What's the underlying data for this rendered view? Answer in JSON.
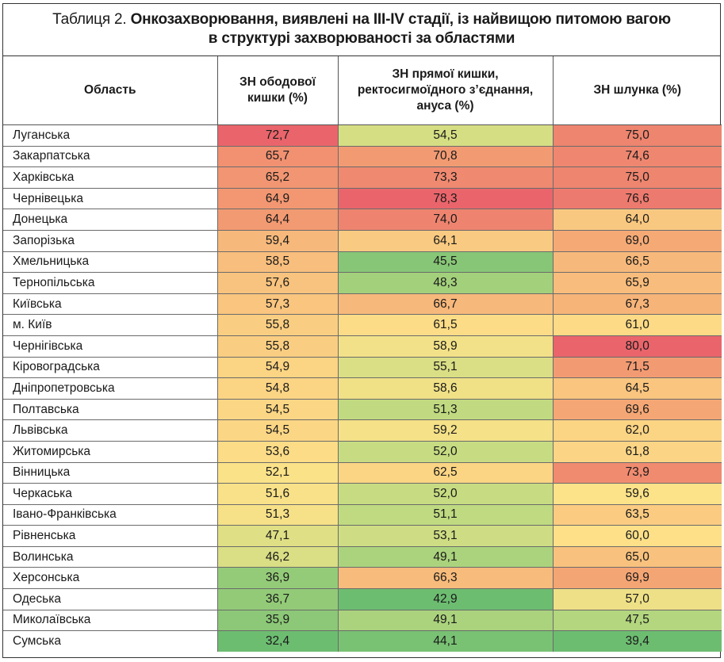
{
  "title": {
    "prefix": "Таблиця 2. ",
    "line1_bold": "Онкозахворювання, виявлені на ІІІ-IV стадії, із найвищою питомою вагою",
    "line2_bold": "в структурі захворюваності за областями"
  },
  "headers": {
    "region": "Область",
    "colon": "ЗН ободової кишки (%)",
    "rectum": "ЗН прямої кишки, ректосигмоїдного з’єднання, ануса (%)",
    "stomach": "ЗН шлунка (%)"
  },
  "rows": [
    {
      "region": "Луганська",
      "colon": "72,7",
      "rectum": "54,5",
      "stomach": "75,0"
    },
    {
      "region": "Закарпатська",
      "colon": "65,7",
      "rectum": "70,8",
      "stomach": "74,6"
    },
    {
      "region": "Харківська",
      "colon": "65,2",
      "rectum": "73,3",
      "stomach": "75,0"
    },
    {
      "region": "Чернівецька",
      "colon": "64,9",
      "rectum": "78,3",
      "stomach": "76,6"
    },
    {
      "region": "Донецька",
      "colon": "64,4",
      "rectum": "74,0",
      "stomach": "64,0"
    },
    {
      "region": "Запорізька",
      "colon": "59,4",
      "rectum": "64,1",
      "stomach": "69,0"
    },
    {
      "region": "Хмельницька",
      "colon": "58,5",
      "rectum": "45,5",
      "stomach": "66,5"
    },
    {
      "region": "Тернопільська",
      "colon": "57,6",
      "rectum": "48,3",
      "stomach": "65,9"
    },
    {
      "region": "Київська",
      "colon": "57,3",
      "rectum": "66,7",
      "stomach": "67,3"
    },
    {
      "region": "м. Київ",
      "colon": "55,8",
      "rectum": "61,5",
      "stomach": "61,0"
    },
    {
      "region": "Чернігівська",
      "colon": "55,8",
      "rectum": "58,9",
      "stomach": "80,0"
    },
    {
      "region": "Кіровоградська",
      "colon": "54,9",
      "rectum": "55,1",
      "stomach": "71,5"
    },
    {
      "region": "Дніпропетровська",
      "colon": "54,8",
      "rectum": "58,6",
      "stomach": "64,5"
    },
    {
      "region": "Полтавська",
      "colon": "54,5",
      "rectum": "51,3",
      "stomach": "69,6"
    },
    {
      "region": "Львівська",
      "colon": "54,5",
      "rectum": "59,2",
      "stomach": "62,0"
    },
    {
      "region": "Житомирська",
      "colon": "53,6",
      "rectum": "52,0",
      "stomach": "61,8"
    },
    {
      "region": "Вінницька",
      "colon": "52,1",
      "rectum": "62,5",
      "stomach": "73,9"
    },
    {
      "region": "Черкаська",
      "colon": "51,6",
      "rectum": "52,0",
      "stomach": "59,6"
    },
    {
      "region": "Івано-Франківська",
      "colon": "51,3",
      "rectum": "51,1",
      "stomach": "63,5"
    },
    {
      "region": "Рівненська",
      "colon": "47,1",
      "rectum": "53,1",
      "stomach": "60,0"
    },
    {
      "region": "Волинська",
      "colon": "46,2",
      "rectum": "49,1",
      "stomach": "65,0"
    },
    {
      "region": "Херсонська",
      "colon": "36,9",
      "rectum": "66,3",
      "stomach": "69,9"
    },
    {
      "region": "Одеська",
      "colon": "36,7",
      "rectum": "42,9",
      "stomach": "57,0"
    },
    {
      "region": "Миколаївська",
      "colon": "35,9",
      "rectum": "49,1",
      "stomach": "47,5"
    },
    {
      "region": "Сумська",
      "colon": "32,4",
      "rectum": "44,1",
      "stomach": "39,4"
    }
  ],
  "colors": {
    "high": "#e9656b",
    "upper": "#f4a574",
    "mid": "#fde289",
    "lower": "#c5dc82",
    "low": "#6dbd71"
  }
}
